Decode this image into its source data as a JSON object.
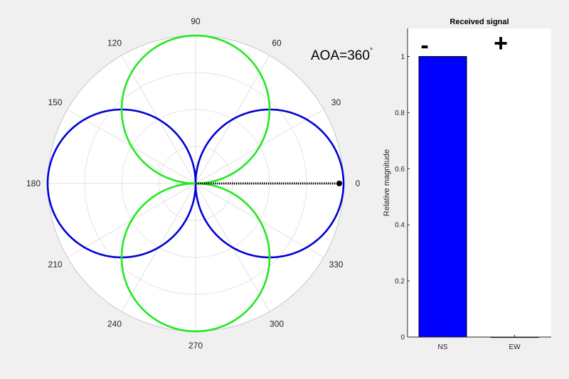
{
  "chart_data": [
    {
      "type": "polar",
      "theta_ticks": [
        "0",
        "30",
        "60",
        "90",
        "120",
        "150",
        "180",
        "210",
        "240",
        "270",
        "300",
        "330"
      ],
      "theta_tick_degrees": [
        0,
        30,
        60,
        90,
        120,
        150,
        180,
        210,
        240,
        270,
        300,
        330
      ],
      "r_max": 1,
      "grid": true,
      "annotation": "AOA=360",
      "annotation_superscript": "°",
      "aoa_degrees": 360,
      "series": [
        {
          "pattern": "abs(cos(theta))",
          "color": "#0000d8"
        },
        {
          "pattern": "abs(sin(theta))",
          "color": "#22e822"
        }
      ],
      "arrow": {
        "angle_degrees": 0,
        "length": 1,
        "color": "#000000",
        "style": "dotted"
      }
    },
    {
      "type": "bar",
      "title": "Received signal",
      "categories": [
        "NS",
        "EW"
      ],
      "values": [
        1,
        0
      ],
      "bar_color": "#0000ff",
      "ylabel": "Relative magnitude",
      "ylim": [
        0,
        1.1
      ],
      "yticks": [
        "0",
        "0.2",
        "0.4",
        "0.6",
        "0.8",
        "1"
      ],
      "ytick_values": [
        0,
        0.2,
        0.4,
        0.6,
        0.8,
        1
      ],
      "sign_labels": [
        "-",
        "+"
      ]
    }
  ]
}
